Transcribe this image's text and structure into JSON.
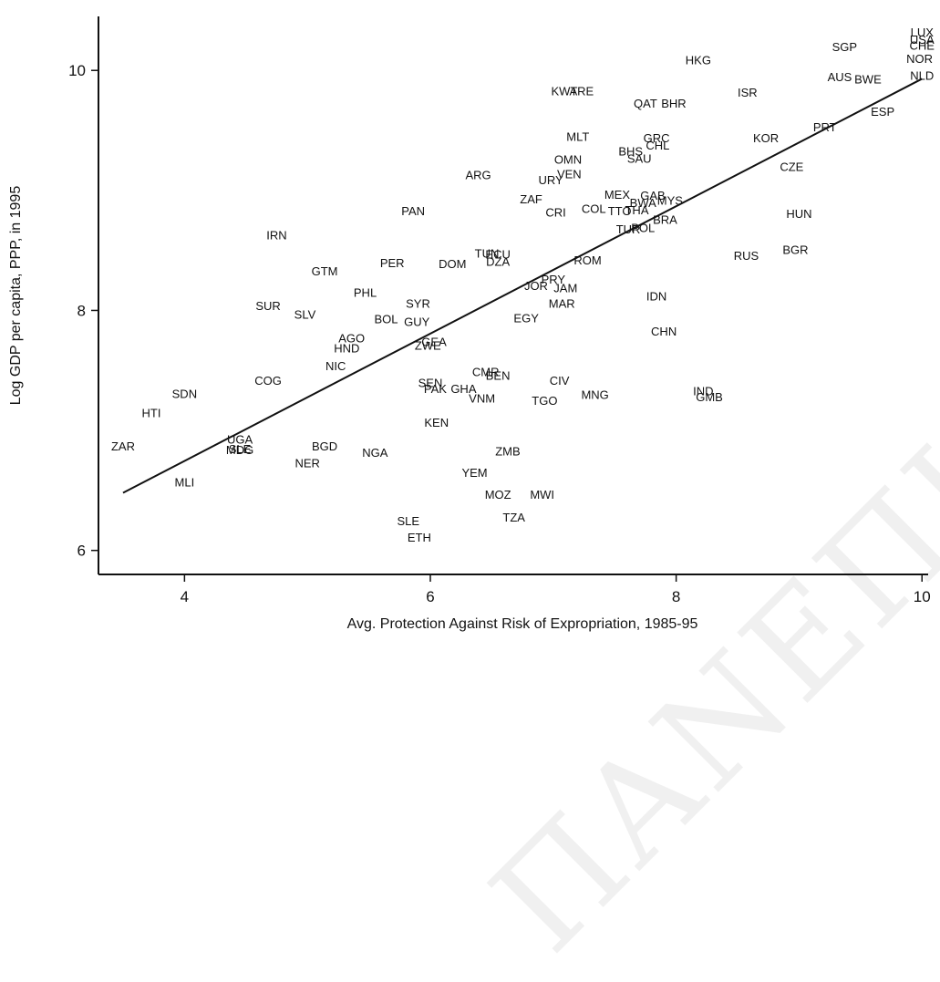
{
  "watermark": "ΠΑΝΕΠΙΣΤΗΜΙΟ ΠΕΙΡΑΙΩΣ",
  "chart_data": {
    "type": "scatter",
    "xlabel": "Avg. Protection Against Risk of Expropriation, 1985-95",
    "ylabel": "Log GDP per capita, PPP, in 1995",
    "xlim": [
      3.3,
      10.05
    ],
    "ylim": [
      5.8,
      10.45
    ],
    "xticks": [
      4,
      6,
      8,
      10
    ],
    "yticks": [
      6,
      8,
      10
    ],
    "grid": false,
    "fit_line": {
      "x": [
        3.5,
        10.0
      ],
      "y": [
        6.48,
        9.93
      ]
    },
    "points": [
      {
        "label": "ZAR",
        "x": 3.5,
        "y": 6.87
      },
      {
        "label": "HTI",
        "x": 3.73,
        "y": 7.15
      },
      {
        "label": "SDN",
        "x": 4.0,
        "y": 7.31
      },
      {
        "label": "MLI",
        "x": 4.0,
        "y": 6.57
      },
      {
        "label": "UGA",
        "x": 4.45,
        "y": 6.93
      },
      {
        "label": "SLE",
        "x": 4.45,
        "y": 6.85
      },
      {
        "label": "MDG",
        "x": 4.45,
        "y": 6.84
      },
      {
        "label": "COG",
        "x": 4.68,
        "y": 7.42
      },
      {
        "label": "SUR",
        "x": 4.68,
        "y": 8.04
      },
      {
        "label": "IRN",
        "x": 4.75,
        "y": 8.63
      },
      {
        "label": "SLV",
        "x": 4.98,
        "y": 7.97
      },
      {
        "label": "GTM",
        "x": 5.14,
        "y": 8.33
      },
      {
        "label": "NER",
        "x": 5.0,
        "y": 6.73
      },
      {
        "label": "BGD",
        "x": 5.14,
        "y": 6.87
      },
      {
        "label": "NIC",
        "x": 5.23,
        "y": 7.54
      },
      {
        "label": "HND",
        "x": 5.32,
        "y": 7.69
      },
      {
        "label": "AGO",
        "x": 5.36,
        "y": 7.77
      },
      {
        "label": "PHL",
        "x": 5.47,
        "y": 8.15
      },
      {
        "label": "NGA",
        "x": 5.55,
        "y": 6.82
      },
      {
        "label": "BOL",
        "x": 5.64,
        "y": 7.93
      },
      {
        "label": "PER",
        "x": 5.69,
        "y": 8.4
      },
      {
        "label": "SYR",
        "x": 5.9,
        "y": 8.06
      },
      {
        "label": "GUY",
        "x": 5.89,
        "y": 7.91
      },
      {
        "label": "ZWE",
        "x": 5.98,
        "y": 7.71
      },
      {
        "label": "GEA",
        "x": 6.03,
        "y": 7.74
      },
      {
        "label": "SEN",
        "x": 6.0,
        "y": 7.4
      },
      {
        "label": "PAK",
        "x": 6.04,
        "y": 7.35
      },
      {
        "label": "GHA",
        "x": 6.27,
        "y": 7.35
      },
      {
        "label": "ETH",
        "x": 5.91,
        "y": 6.11
      },
      {
        "label": "SLE",
        "x": 5.82,
        "y": 6.25
      },
      {
        "label": "KEN",
        "x": 6.05,
        "y": 7.07
      },
      {
        "label": "PAN",
        "x": 5.86,
        "y": 8.83
      },
      {
        "label": "DOM",
        "x": 6.18,
        "y": 8.39
      },
      {
        "label": "ARG",
        "x": 6.39,
        "y": 9.13
      },
      {
        "label": "TUN",
        "x": 6.46,
        "y": 8.48
      },
      {
        "label": "ECU",
        "x": 6.55,
        "y": 8.47
      },
      {
        "label": "DZA",
        "x": 6.55,
        "y": 8.41
      },
      {
        "label": "VNM",
        "x": 6.42,
        "y": 7.27
      },
      {
        "label": "CMR",
        "x": 6.45,
        "y": 7.49
      },
      {
        "label": "BEN",
        "x": 6.55,
        "y": 7.46
      },
      {
        "label": "YEM",
        "x": 6.36,
        "y": 6.65
      },
      {
        "label": "ZMB",
        "x": 6.63,
        "y": 6.83
      },
      {
        "label": "MOZ",
        "x": 6.55,
        "y": 6.47
      },
      {
        "label": "TZA",
        "x": 6.68,
        "y": 6.28
      },
      {
        "label": "MWI",
        "x": 6.91,
        "y": 6.47
      },
      {
        "label": "EGY",
        "x": 6.78,
        "y": 7.94
      },
      {
        "label": "JOR",
        "x": 6.86,
        "y": 8.21
      },
      {
        "label": "PRY",
        "x": 7.0,
        "y": 8.26
      },
      {
        "label": "JAM",
        "x": 7.1,
        "y": 8.19
      },
      {
        "label": "MAR",
        "x": 7.07,
        "y": 8.06
      },
      {
        "label": "TGO",
        "x": 6.93,
        "y": 7.25
      },
      {
        "label": "CIV",
        "x": 7.05,
        "y": 7.42
      },
      {
        "label": "MNG",
        "x": 7.34,
        "y": 7.3
      },
      {
        "label": "ROM",
        "x": 7.28,
        "y": 8.42
      },
      {
        "label": "ZAF",
        "x": 6.82,
        "y": 8.93
      },
      {
        "label": "CRI",
        "x": 7.02,
        "y": 8.82
      },
      {
        "label": "COL",
        "x": 7.33,
        "y": 8.85
      },
      {
        "label": "URY",
        "x": 6.98,
        "y": 9.09
      },
      {
        "label": "VEN",
        "x": 7.13,
        "y": 9.14
      },
      {
        "label": "OMN",
        "x": 7.12,
        "y": 9.26
      },
      {
        "label": "MLT",
        "x": 7.2,
        "y": 9.45
      },
      {
        "label": "KWT",
        "x": 7.09,
        "y": 9.83
      },
      {
        "label": "ARE",
        "x": 7.23,
        "y": 9.83
      },
      {
        "label": "MEX",
        "x": 7.52,
        "y": 8.97
      },
      {
        "label": "TTO",
        "x": 7.54,
        "y": 8.83
      },
      {
        "label": "THA",
        "x": 7.68,
        "y": 8.84
      },
      {
        "label": "TUR",
        "x": 7.61,
        "y": 8.68
      },
      {
        "label": "POL",
        "x": 7.73,
        "y": 8.69
      },
      {
        "label": "BRA",
        "x": 7.91,
        "y": 8.76
      },
      {
        "label": "GAB",
        "x": 7.81,
        "y": 8.96
      },
      {
        "label": "MYS",
        "x": 7.95,
        "y": 8.92
      },
      {
        "label": "BWA",
        "x": 7.73,
        "y": 8.9
      },
      {
        "label": "BHS",
        "x": 7.63,
        "y": 9.33
      },
      {
        "label": "SAU",
        "x": 7.7,
        "y": 9.27
      },
      {
        "label": "GRC",
        "x": 7.84,
        "y": 9.44
      },
      {
        "label": "CHL",
        "x": 7.85,
        "y": 9.38
      },
      {
        "label": "QAT",
        "x": 7.75,
        "y": 9.73
      },
      {
        "label": "BHR",
        "x": 7.98,
        "y": 9.73
      },
      {
        "label": "HKG",
        "x": 8.18,
        "y": 10.09
      },
      {
        "label": "ISR",
        "x": 8.58,
        "y": 9.82
      },
      {
        "label": "KOR",
        "x": 8.73,
        "y": 9.44
      },
      {
        "label": "IDN",
        "x": 7.84,
        "y": 8.12
      },
      {
        "label": "CHN",
        "x": 7.9,
        "y": 7.83
      },
      {
        "label": "IND",
        "x": 8.22,
        "y": 7.33
      },
      {
        "label": "GMB",
        "x": 8.27,
        "y": 7.28
      },
      {
        "label": "RUS",
        "x": 8.57,
        "y": 8.46
      },
      {
        "label": "BGR",
        "x": 8.97,
        "y": 8.51
      },
      {
        "label": "HUN",
        "x": 9.0,
        "y": 8.81
      },
      {
        "label": "CZE",
        "x": 8.94,
        "y": 9.2
      },
      {
        "label": "PRT",
        "x": 9.21,
        "y": 9.53
      },
      {
        "label": "SGP",
        "x": 9.37,
        "y": 10.2
      },
      {
        "label": "AUS",
        "x": 9.33,
        "y": 9.95
      },
      {
        "label": "BWE",
        "x": 9.56,
        "y": 9.93
      },
      {
        "label": "ESP",
        "x": 9.68,
        "y": 9.66
      },
      {
        "label": "LUX",
        "x": 10.0,
        "y": 10.32
      },
      {
        "label": "USA",
        "x": 10.0,
        "y": 10.26
      },
      {
        "label": "CHE",
        "x": 10.0,
        "y": 10.21
      },
      {
        "label": "NOR",
        "x": 9.98,
        "y": 10.1
      },
      {
        "label": "NLD",
        "x": 10.0,
        "y": 9.96
      }
    ]
  }
}
